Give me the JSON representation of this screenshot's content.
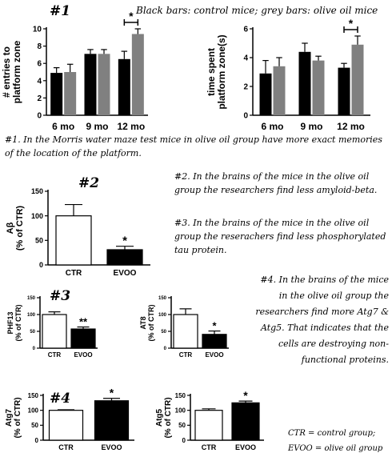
{
  "header": {
    "panel_label": "#1",
    "legend_note": "Black bars: control mice; grey bars: olive oil mice"
  },
  "colors": {
    "control": "#000000",
    "olive_oil": "#808080",
    "ctr_fill": "#ffffff",
    "evoo_fill": "#000000"
  },
  "notes": {
    "n1": "#1. In the Morris water maze test mice in olive oil group have more exact memories of the location of the platform.",
    "n2": "#2. In the brains of the mice in the olive oil group the researchers find less amyloid-beta.",
    "n3": "#3. In the brains of the mice in the olive oil group the reserachers find less phosphorylated tau protein.",
    "n4": "#4. In the brains of the mice in the olive oil group the researchers find more Atg7 & Atg5. That indicates that the cells are destroying non-functional proteins.",
    "key": "CTR = control group; EVOO = olive oil group"
  },
  "labels": {
    "n2": "#2",
    "n3": "#3",
    "n4": "#4"
  },
  "chart_data": [
    {
      "id": "entries",
      "type": "bar",
      "ylabel": "# entries to platform zone",
      "categories": [
        "6 mo",
        "9 mo",
        "12 mo"
      ],
      "ylim": [
        0,
        10
      ],
      "yticks": [
        0,
        2,
        4,
        6,
        8,
        10
      ],
      "series": [
        {
          "values": [
            4.9,
            7.1,
            6.5
          ],
          "errors": [
            0.6,
            0.5,
            0.9
          ]
        },
        {
          "values": [
            5.0,
            7.1,
            9.4
          ],
          "errors": [
            0.9,
            0.5,
            0.6
          ]
        }
      ],
      "significance": [
        {
          "category": "12 mo",
          "label": "*"
        }
      ]
    },
    {
      "id": "time",
      "type": "bar",
      "ylabel": "time spent platform zone(s)",
      "categories": [
        "6 mo",
        "9 mo",
        "12 mo"
      ],
      "ylim": [
        0,
        6
      ],
      "yticks": [
        0,
        2,
        4,
        6
      ],
      "series": [
        {
          "values": [
            2.9,
            4.4,
            3.3
          ],
          "errors": [
            0.9,
            0.6,
            0.3
          ]
        },
        {
          "values": [
            3.4,
            3.8,
            4.9
          ],
          "errors": [
            0.6,
            0.3,
            0.6
          ]
        }
      ],
      "significance": [
        {
          "category": "12 mo",
          "label": "*"
        }
      ]
    },
    {
      "id": "abeta",
      "type": "bar",
      "ylabel": "Aβ (% of CTR)",
      "categories": [
        "CTR",
        "EVOO"
      ],
      "values": [
        100,
        31
      ],
      "errors": [
        23,
        7
      ],
      "ylim": [
        0,
        150
      ],
      "yticks": [
        0,
        50,
        100,
        150
      ],
      "significance": [
        {
          "category": "EVOO",
          "label": "*"
        }
      ]
    },
    {
      "id": "phf13",
      "type": "bar",
      "ylabel": "PHF13 (% of CTR)",
      "categories": [
        "CTR",
        "EVOO"
      ],
      "values": [
        100,
        57
      ],
      "errors": [
        8,
        6
      ],
      "ylim": [
        0,
        150
      ],
      "yticks": [
        0,
        50,
        100,
        150
      ],
      "significance": [
        {
          "category": "EVOO",
          "label": "**"
        }
      ]
    },
    {
      "id": "at8",
      "type": "bar",
      "ylabel": "AT8 (% of CTR)",
      "categories": [
        "CTR",
        "EVOO"
      ],
      "values": [
        100,
        41
      ],
      "errors": [
        17,
        10
      ],
      "ylim": [
        0,
        150
      ],
      "yticks": [
        0,
        50,
        100,
        150
      ],
      "significance": [
        {
          "category": "EVOO",
          "label": "*"
        }
      ]
    },
    {
      "id": "atg7",
      "type": "bar",
      "ylabel": "Atg7 (% of CTR)",
      "categories": [
        "CTR",
        "EVOO"
      ],
      "values": [
        100,
        132
      ],
      "errors": [
        2,
        8
      ],
      "ylim": [
        0,
        150
      ],
      "yticks": [
        0,
        50,
        100,
        150
      ],
      "significance": [
        {
          "category": "EVOO",
          "label": "*"
        }
      ]
    },
    {
      "id": "atg5",
      "type": "bar",
      "ylabel": "Atg5 (% of CTR)",
      "categories": [
        "CTR",
        "EVOO"
      ],
      "values": [
        100,
        125
      ],
      "errors": [
        5,
        6
      ],
      "ylim": [
        0,
        150
      ],
      "yticks": [
        0,
        50,
        100,
        150
      ],
      "significance": [
        {
          "category": "EVOO",
          "label": "*"
        }
      ]
    }
  ]
}
